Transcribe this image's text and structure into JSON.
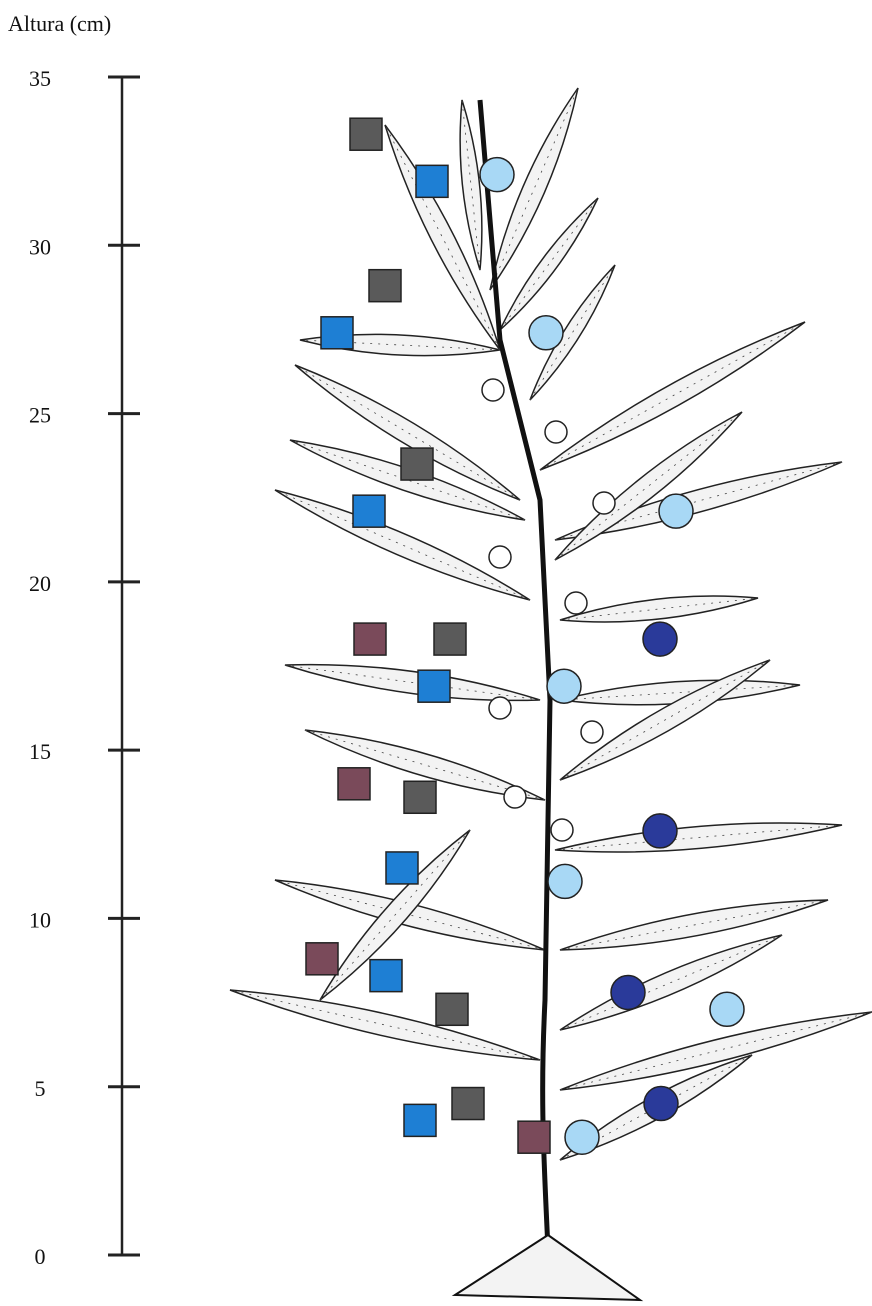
{
  "chart_data": {
    "type": "scatter",
    "y_label": "Altura (cm)",
    "ylim": [
      0,
      35
    ],
    "yticks": [
      0,
      5,
      10,
      15,
      20,
      25,
      30,
      35
    ],
    "series": [
      {
        "color": "#5a5a5a",
        "marker": "square",
        "values": [
          33.3,
          28.8,
          23.5,
          18.3,
          13.6,
          7.3,
          4.5
        ]
      },
      {
        "color": "#1e7fd4",
        "marker": "square",
        "values": [
          31.9,
          27.4,
          22.1,
          16.9,
          11.5,
          8.3,
          4.0
        ]
      },
      {
        "color": "#7a4a5a",
        "marker": "square",
        "values": [
          18.3,
          14.0,
          8.8,
          3.5
        ]
      },
      {
        "color": "#a8d8f5",
        "marker": "circle",
        "values": [
          32.1,
          27.4,
          22.1,
          16.9,
          11.1,
          7.3,
          3.5
        ]
      },
      {
        "color": "#2a3a9a",
        "marker": "circle",
        "values": [
          18.3,
          12.6,
          7.8,
          4.5
        ]
      }
    ]
  }
}
